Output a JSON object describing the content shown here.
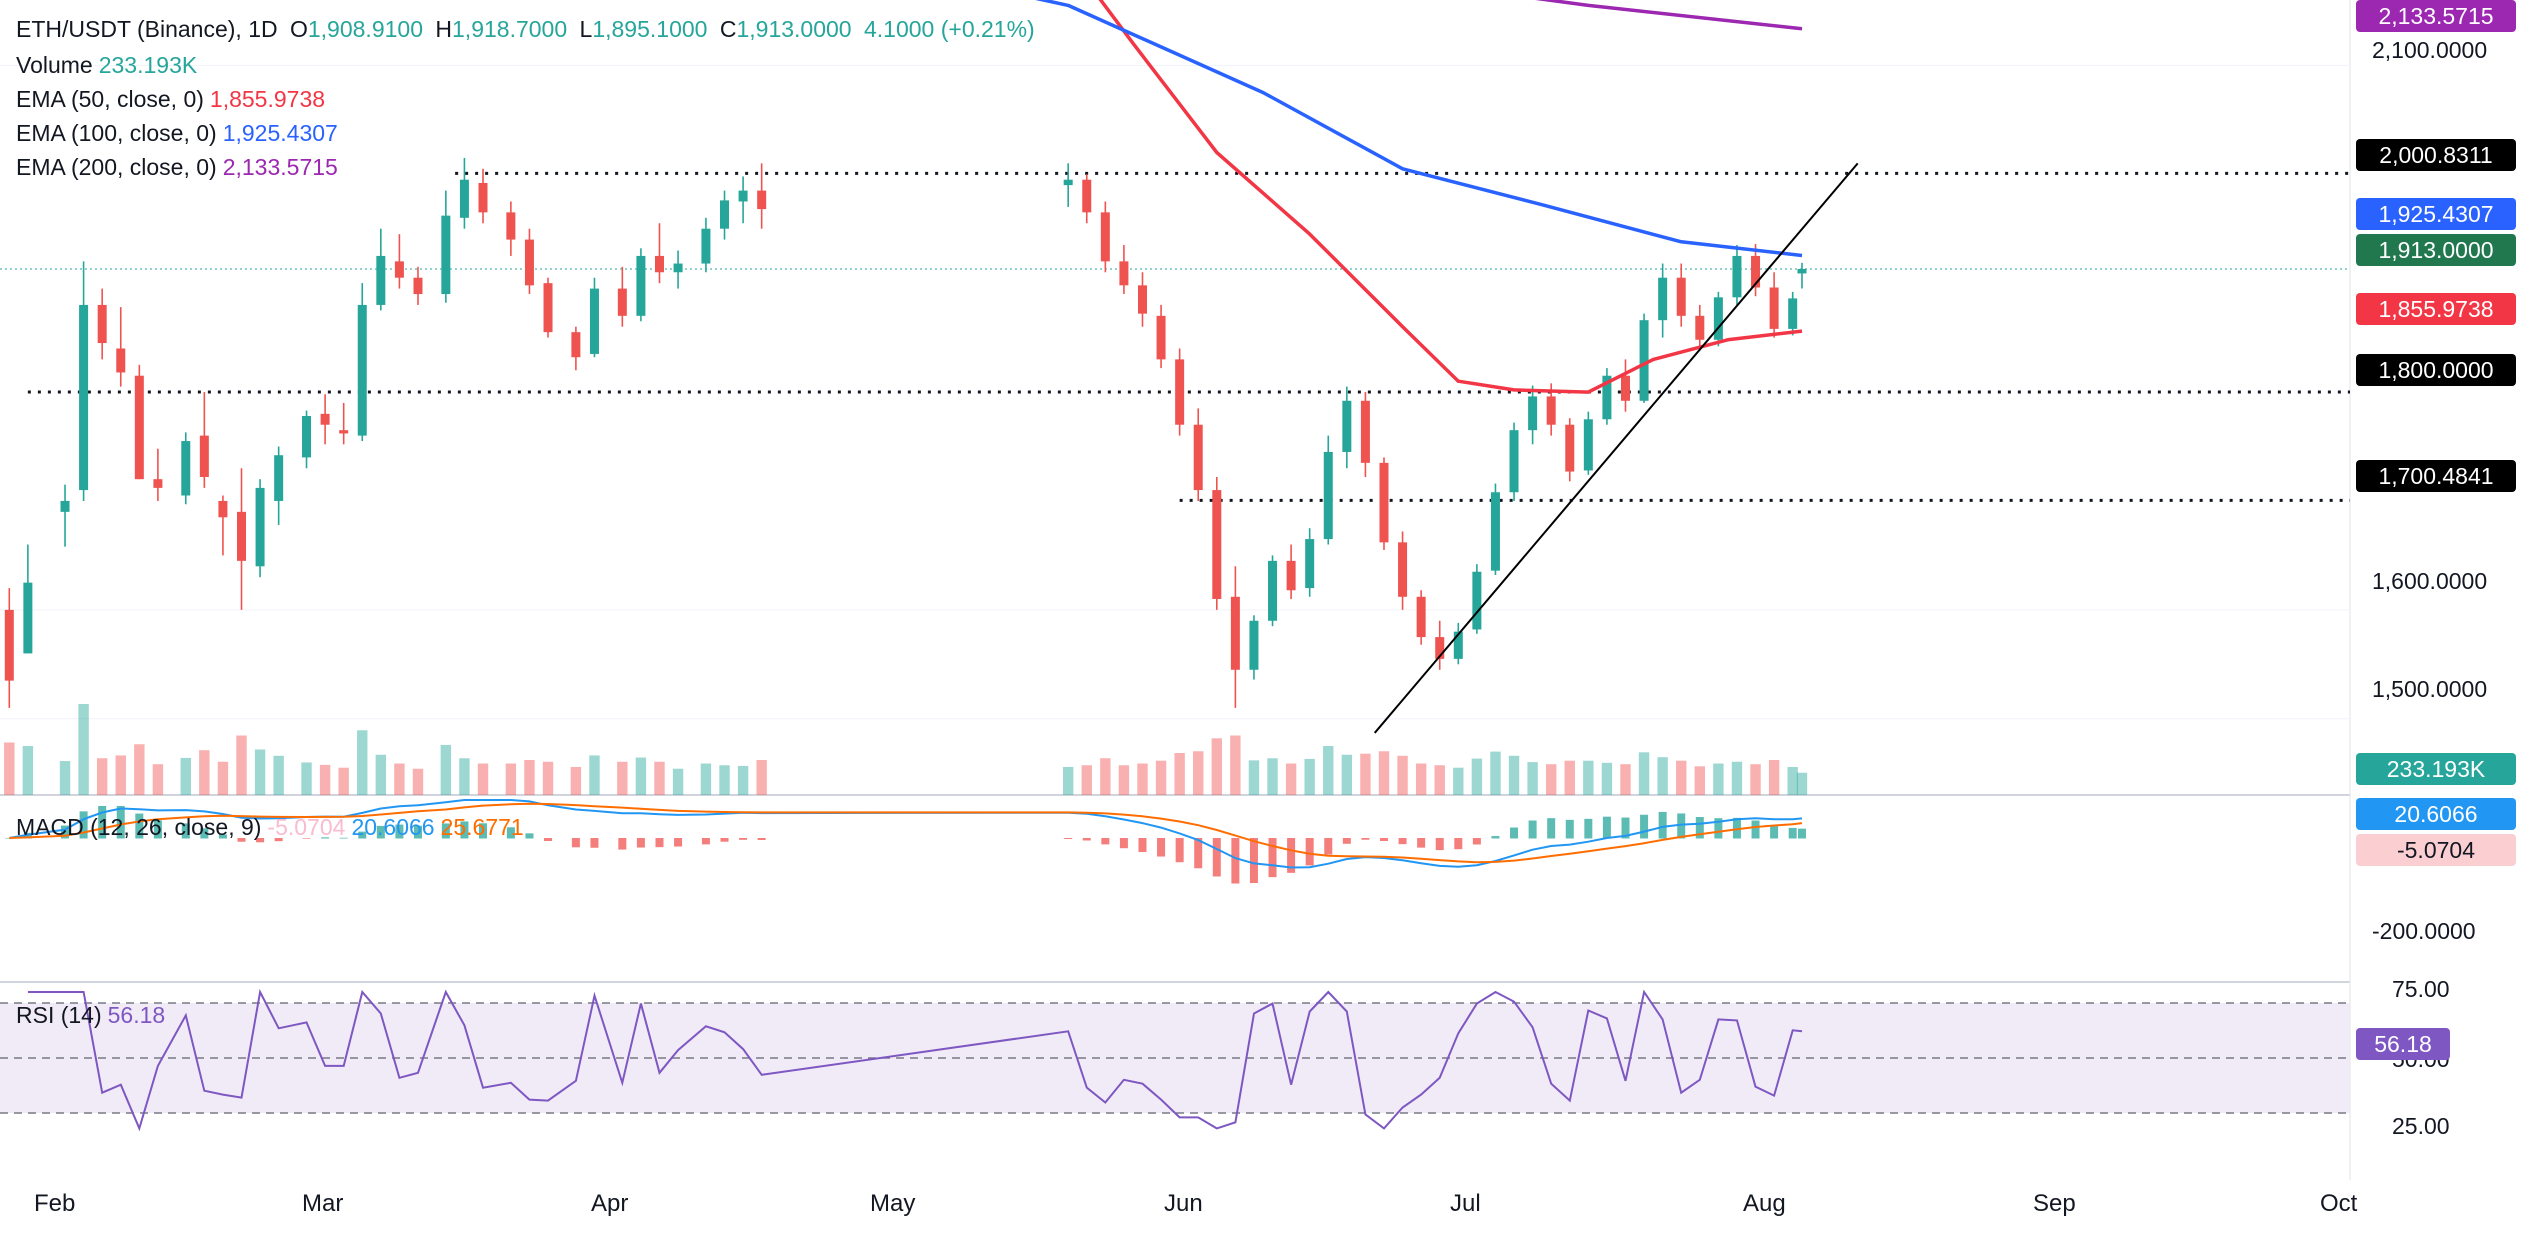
{
  "legend": {
    "symbol": "ETH/USDT (Binance), 1D",
    "ohlc": {
      "o_label": "O",
      "o": "1,908.9100",
      "h_label": "H",
      "h": "1,918.7000",
      "l_label": "L",
      "l": "1,895.1000",
      "c_label": "C",
      "c": "1,913.0000",
      "change": "4.1000 (+0.21%)"
    },
    "volume": {
      "label": "Volume",
      "value": "233.193K"
    },
    "ema50": {
      "label": "EMA (50, close, 0)",
      "value": "1,855.9738"
    },
    "ema100": {
      "label": "EMA (100, close, 0)",
      "value": "1,925.4307"
    },
    "ema200": {
      "label": "EMA (200, close, 0)",
      "value": "2,133.5715"
    },
    "macd": {
      "label": "MACD (12, 26, close, 9)",
      "hist": "-5.0704",
      "macd": "20.6066",
      "signal": "25.6771"
    },
    "rsi": {
      "label": "RSI (14)",
      "value": "56.18"
    }
  },
  "price_tags": {
    "ema200": "2,133.5715",
    "res_2000": "2,000.8311",
    "ema100": "1,925.4307",
    "last": "1,913.0000",
    "ema50": "1,855.9738",
    "sup_1800": "1,800.0000",
    "sup_1700": "1,700.4841",
    "volume": "233.193K",
    "macd": "20.6066",
    "hist": "-5.0704",
    "rsi": "56.18"
  },
  "price_axis": [
    "2,100.0000",
    "1,600.0000",
    "1,500.0000"
  ],
  "macd_axis": [
    "-200.0000"
  ],
  "rsi_axis": [
    "75.00",
    "50.00",
    "25.00"
  ],
  "time_axis": [
    "Feb",
    "Mar",
    "Apr",
    "May",
    "Jun",
    "Jul",
    "Aug",
    "Sep",
    "Oct"
  ],
  "colors": {
    "up": "#26a69a",
    "down": "#ef5350",
    "ema50": "#f23645",
    "ema100": "#2962ff",
    "ema200": "#9c27b0",
    "macd": "#2196f3",
    "signal": "#ff6d00",
    "rsi": "#7e57c2"
  },
  "chart_data": {
    "type": "candlestick",
    "title": "ETH/USDT (Binance), 1D",
    "x_range": [
      "2023-01-25",
      "2023-10-05"
    ],
    "y_range": [
      1430,
      2160
    ],
    "last_date": "2023-08-07",
    "horizontal_levels": [
      {
        "value": 2000.8311,
        "from": "2023-03-15"
      },
      {
        "value": 1800.0,
        "from": "2023-01-28"
      },
      {
        "value": 1700.4841,
        "from": "2023-06-01"
      }
    ],
    "trendline": {
      "from": [
        "2023-06-22",
        1487
      ],
      "to": [
        "2023-08-13",
        2010
      ]
    },
    "ema_points": {
      "ema50": [
        [
          "2023-05-20",
          2200
        ],
        [
          "2023-05-27",
          2120
        ],
        [
          "2023-06-05",
          2020
        ],
        [
          "2023-06-15",
          1945
        ],
        [
          "2023-06-25",
          1860
        ],
        [
          "2023-07-01",
          1810
        ],
        [
          "2023-07-07",
          1802
        ],
        [
          "2023-07-15",
          1800
        ],
        [
          "2023-07-22",
          1830
        ],
        [
          "2023-07-30",
          1848
        ],
        [
          "2023-08-07",
          1856
        ]
      ],
      "ema100": [
        [
          "2023-04-15",
          2220
        ],
        [
          "2023-05-20",
          2155
        ],
        [
          "2023-06-10",
          2075
        ],
        [
          "2023-06-25",
          2005
        ],
        [
          "2023-07-10",
          1972
        ],
        [
          "2023-07-25",
          1938
        ],
        [
          "2023-08-07",
          1925.43
        ]
      ],
      "ema200": [
        [
          "2023-06-25",
          2178
        ],
        [
          "2023-07-15",
          2155
        ],
        [
          "2023-08-07",
          2133.57
        ]
      ]
    },
    "candles": [
      [
        "2023-01-26",
        1600,
        1620,
        1510,
        1535
      ],
      [
        "2023-01-28",
        1560,
        1660,
        1560,
        1625
      ],
      [
        "2023-02-01",
        1690,
        1715,
        1658,
        1700
      ],
      [
        "2023-02-03",
        1710,
        1920,
        1700,
        1880
      ],
      [
        "2023-02-05",
        1880,
        1895,
        1830,
        1845
      ],
      [
        "2023-02-07",
        1840,
        1878,
        1805,
        1818
      ],
      [
        "2023-02-09",
        1815,
        1825,
        1720,
        1720
      ],
      [
        "2023-02-11",
        1720,
        1748,
        1700,
        1712
      ],
      [
        "2023-02-14",
        1705,
        1763,
        1697,
        1755
      ],
      [
        "2023-02-16",
        1760,
        1800,
        1712,
        1722
      ],
      [
        "2023-02-18",
        1700,
        1705,
        1650,
        1685
      ],
      [
        "2023-02-20",
        1690,
        1730,
        1600,
        1645
      ],
      [
        "2023-02-22",
        1640,
        1720,
        1630,
        1712
      ],
      [
        "2023-02-24",
        1700,
        1750,
        1678,
        1742
      ],
      [
        "2023-02-27",
        1740,
        1783,
        1730,
        1778
      ],
      [
        "2023-03-01",
        1780,
        1798,
        1752,
        1770
      ],
      [
        "2023-03-03",
        1765,
        1790,
        1752,
        1762
      ],
      [
        "2023-03-05",
        1760,
        1900,
        1755,
        1880
      ],
      [
        "2023-03-07",
        1880,
        1950,
        1875,
        1925
      ],
      [
        "2023-03-09",
        1920,
        1945,
        1895,
        1905
      ],
      [
        "2023-03-11",
        1905,
        1915,
        1880,
        1890
      ],
      [
        "2023-03-14",
        1890,
        1985,
        1882,
        1962
      ],
      [
        "2023-03-16",
        1960,
        2015,
        1950,
        1995
      ],
      [
        "2023-03-18",
        1992,
        2005,
        1955,
        1965
      ],
      [
        "2023-03-21",
        1965,
        1975,
        1925,
        1940
      ],
      [
        "2023-03-23",
        1940,
        1950,
        1890,
        1898
      ],
      [
        "2023-03-25",
        1900,
        1905,
        1850,
        1855
      ],
      [
        "2023-03-28",
        1855,
        1860,
        1820,
        1832
      ],
      [
        "2023-03-30",
        1835,
        1905,
        1832,
        1895
      ],
      [
        "2023-04-02",
        1895,
        1915,
        1860,
        1870
      ],
      [
        "2023-04-04",
        1870,
        1932,
        1865,
        1925
      ],
      [
        "2023-04-06",
        1925,
        1955,
        1900,
        1910
      ],
      [
        "2023-04-08",
        1910,
        1930,
        1895,
        1918
      ],
      [
        "2023-04-11",
        1918,
        1960,
        1910,
        1950
      ],
      [
        "2023-04-13",
        1950,
        1985,
        1940,
        1976
      ],
      [
        "2023-04-15",
        1975,
        1998,
        1955,
        1985
      ],
      [
        "2023-04-17",
        1985,
        2010,
        1950,
        1968
      ],
      [
        "2023-05-20",
        1990,
        2010,
        1970,
        1995
      ],
      [
        "2023-05-22",
        1995,
        2000,
        1955,
        1965
      ],
      [
        "2023-05-24",
        1965,
        1975,
        1910,
        1920
      ],
      [
        "2023-05-26",
        1920,
        1935,
        1890,
        1898
      ],
      [
        "2023-05-28",
        1898,
        1910,
        1860,
        1872
      ],
      [
        "2023-05-30",
        1870,
        1880,
        1822,
        1830
      ],
      [
        "2023-06-01",
        1830,
        1840,
        1760,
        1770
      ],
      [
        "2023-06-03",
        1770,
        1785,
        1700,
        1710
      ],
      [
        "2023-06-05",
        1710,
        1722,
        1600,
        1610
      ],
      [
        "2023-06-07",
        1612,
        1640,
        1510,
        1545
      ],
      [
        "2023-06-09",
        1545,
        1595,
        1536,
        1590
      ],
      [
        "2023-06-11",
        1590,
        1650,
        1585,
        1645
      ],
      [
        "2023-06-13",
        1645,
        1660,
        1610,
        1618
      ],
      [
        "2023-06-15",
        1620,
        1675,
        1612,
        1665
      ],
      [
        "2023-06-17",
        1665,
        1760,
        1660,
        1745
      ],
      [
        "2023-06-19",
        1745,
        1805,
        1730,
        1792
      ],
      [
        "2023-06-21",
        1792,
        1800,
        1722,
        1735
      ],
      [
        "2023-06-23",
        1735,
        1740,
        1655,
        1662
      ],
      [
        "2023-06-25",
        1662,
        1672,
        1600,
        1612
      ],
      [
        "2023-06-27",
        1612,
        1618,
        1568,
        1575
      ],
      [
        "2023-06-29",
        1575,
        1590,
        1545,
        1555
      ],
      [
        "2023-07-01",
        1555,
        1588,
        1550,
        1580
      ],
      [
        "2023-07-03",
        1582,
        1642,
        1578,
        1635
      ],
      [
        "2023-07-05",
        1636,
        1716,
        1632,
        1708
      ],
      [
        "2023-07-07",
        1708,
        1772,
        1700,
        1765
      ],
      [
        "2023-07-09",
        1765,
        1806,
        1752,
        1796
      ],
      [
        "2023-07-11",
        1796,
        1808,
        1760,
        1770
      ],
      [
        "2023-07-13",
        1770,
        1776,
        1718,
        1727
      ],
      [
        "2023-07-15",
        1728,
        1782,
        1724,
        1775
      ],
      [
        "2023-07-17",
        1775,
        1822,
        1770,
        1815
      ],
      [
        "2023-07-19",
        1815,
        1830,
        1782,
        1792
      ],
      [
        "2023-07-21",
        1792,
        1872,
        1790,
        1866
      ],
      [
        "2023-07-23",
        1866,
        1918,
        1850,
        1905
      ],
      [
        "2023-07-25",
        1905,
        1918,
        1860,
        1870
      ],
      [
        "2023-07-27",
        1870,
        1880,
        1838,
        1848
      ],
      [
        "2023-07-29",
        1848,
        1892,
        1842,
        1887
      ],
      [
        "2023-07-31",
        1887,
        1935,
        1880,
        1925
      ],
      [
        "2023-08-02",
        1925,
        1936,
        1888,
        1896
      ],
      [
        "2023-08-04",
        1896,
        1910,
        1850,
        1858
      ],
      [
        "2023-08-06",
        1858,
        1892,
        1852,
        1886
      ],
      [
        "2023-08-07",
        1908.91,
        1918.7,
        1895.1,
        1913.0
      ]
    ]
  }
}
